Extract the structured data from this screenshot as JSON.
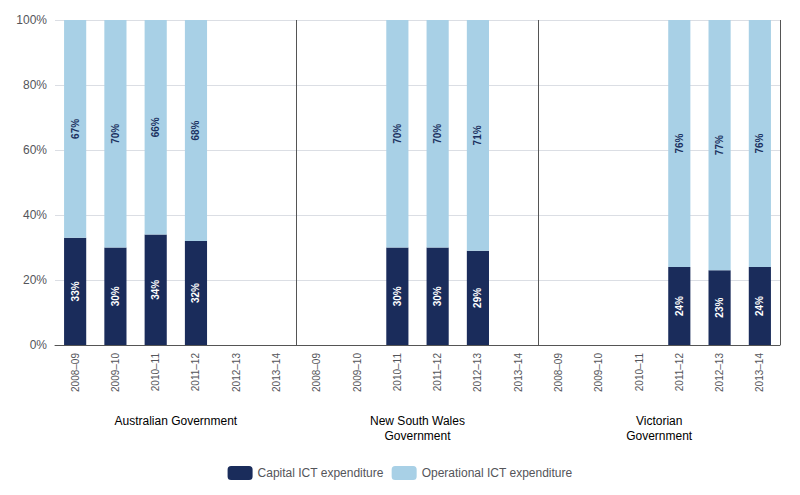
{
  "chart_data": {
    "type": "bar",
    "stacked": true,
    "data_labels": true,
    "grid": true,
    "legend": "bottom",
    "groups": [
      {
        "name": "Australian Government",
        "categories": [
          "2008–09",
          "2009–10",
          "2010–11",
          "2011–12",
          "2012–13",
          "2013–14"
        ]
      },
      {
        "name": "New South Wales\nGovernment",
        "categories": [
          "2008–09",
          "2009–10",
          "2010–11",
          "2011–12",
          "2012–13",
          "2013–14"
        ]
      },
      {
        "name": "Victorian\nGovernment",
        "categories": [
          "2008–09",
          "2009–10",
          "2010–11",
          "2011–12",
          "2012–13",
          "2013–14"
        ]
      }
    ],
    "categories": [
      "2008–09",
      "2009–10",
      "2010–11",
      "2011–12",
      "2012–13",
      "2013–14",
      "2008–09",
      "2009–10",
      "2010–11",
      "2011–12",
      "2012–13",
      "2013–14",
      "2008–09",
      "2009–10",
      "2010–11",
      "2011–12",
      "2012–13",
      "2013–14"
    ],
    "series": [
      {
        "name": "Capital ICT expenditure",
        "color": "#1a2c5b",
        "values": [
          33,
          30,
          34,
          32,
          null,
          null,
          null,
          null,
          30,
          30,
          29,
          null,
          null,
          null,
          null,
          24,
          23,
          24
        ],
        "value_labels": [
          "33%",
          "30%",
          "34%",
          "32%",
          null,
          null,
          null,
          null,
          "30%",
          "30%",
          "29%",
          null,
          null,
          null,
          null,
          "24%",
          "23%",
          "24%"
        ]
      },
      {
        "name": "Operational ICT expenditure",
        "color": "#a8d0e6",
        "values": [
          67,
          70,
          66,
          68,
          null,
          null,
          null,
          null,
          70,
          70,
          71,
          null,
          null,
          null,
          null,
          76,
          77,
          76
        ],
        "value_labels": [
          "67%",
          "70%",
          "66%",
          "68%",
          null,
          null,
          null,
          null,
          "70%",
          "70%",
          "71%",
          null,
          null,
          null,
          null,
          "76%",
          "77%",
          "76%"
        ]
      }
    ],
    "ylim": [
      0,
      100
    ],
    "yticks": [
      {
        "value": 0,
        "label": "0%"
      },
      {
        "value": 20,
        "label": "20%"
      },
      {
        "value": 40,
        "label": "40%"
      },
      {
        "value": 60,
        "label": "60%"
      },
      {
        "value": 80,
        "label": "80%"
      },
      {
        "value": 100,
        "label": "100%"
      }
    ]
  }
}
